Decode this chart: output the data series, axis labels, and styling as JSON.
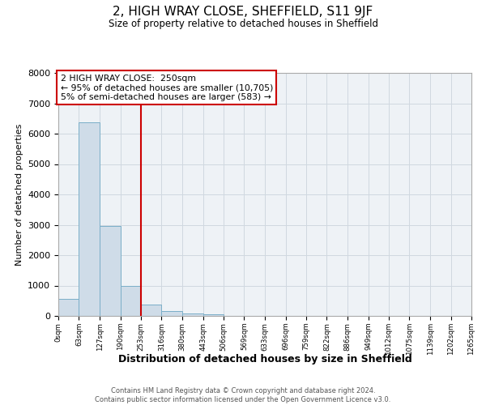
{
  "title": "2, HIGH WRAY CLOSE, SHEFFIELD, S11 9JF",
  "subtitle": "Size of property relative to detached houses in Sheffield",
  "xlabel": "Distribution of detached houses by size in Sheffield",
  "ylabel": "Number of detached properties",
  "bar_edges": [
    0,
    63,
    127,
    190,
    253,
    316,
    380,
    443,
    506,
    569,
    633,
    696,
    759,
    822,
    886,
    949,
    1012,
    1075,
    1139,
    1202,
    1265
  ],
  "bar_heights": [
    550,
    6380,
    2960,
    980,
    380,
    160,
    90,
    50,
    0,
    0,
    0,
    0,
    0,
    0,
    0,
    0,
    0,
    0,
    0,
    0
  ],
  "bar_color": "#cfdce8",
  "bar_edgecolor": "#7aaec8",
  "property_line_x": 253,
  "property_line_color": "#cc0000",
  "annotation_text": "2 HIGH WRAY CLOSE:  250sqm\n← 95% of detached houses are smaller (10,705)\n5% of semi-detached houses are larger (583) →",
  "annotation_box_facecolor": "#ffffff",
  "annotation_box_edgecolor": "#cc0000",
  "ylim": [
    0,
    8000
  ],
  "yticks": [
    0,
    1000,
    2000,
    3000,
    4000,
    5000,
    6000,
    7000,
    8000
  ],
  "tick_labels": [
    "0sqm",
    "63sqm",
    "127sqm",
    "190sqm",
    "253sqm",
    "316sqm",
    "380sqm",
    "443sqm",
    "506sqm",
    "569sqm",
    "633sqm",
    "696sqm",
    "759sqm",
    "822sqm",
    "886sqm",
    "949sqm",
    "1012sqm",
    "1075sqm",
    "1139sqm",
    "1202sqm",
    "1265sqm"
  ],
  "footer_text": "Contains HM Land Registry data © Crown copyright and database right 2024.\nContains public sector information licensed under the Open Government Licence v3.0.",
  "grid_color": "#d0d8e0",
  "background_color": "#eef2f6"
}
